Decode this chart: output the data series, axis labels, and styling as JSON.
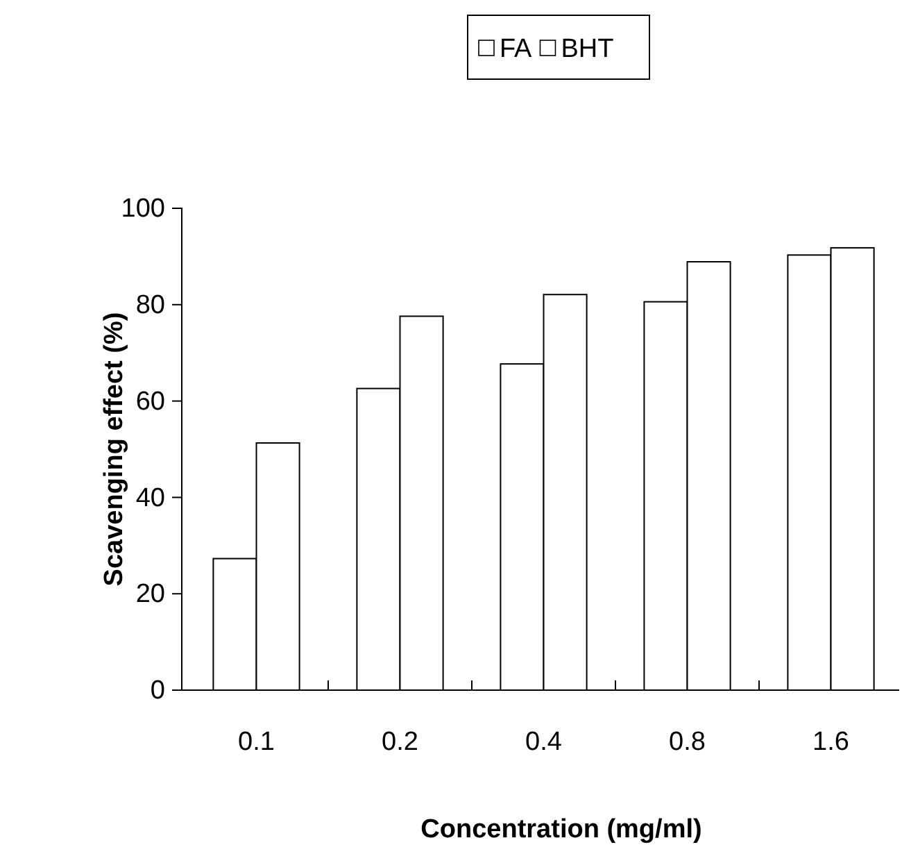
{
  "chart_data": {
    "type": "bar",
    "xlabel": "Concentration (mg/ml)",
    "ylabel": "Scavenging effect (%)",
    "categories": [
      "0.1",
      "0.2",
      "0.4",
      "0.8",
      "1.6"
    ],
    "series": [
      {
        "name": "FA",
        "color": "#ffffff",
        "values": [
          27.3,
          62.6,
          67.7,
          80.6,
          90.3
        ]
      },
      {
        "name": "BHT",
        "color": "#ffffff",
        "values": [
          51.3,
          77.6,
          82.1,
          88.9,
          91.8
        ]
      }
    ],
    "ylim": [
      0,
      100
    ],
    "yticks": [
      0,
      20,
      40,
      60,
      80,
      100
    ],
    "grid": false,
    "legend": "top"
  }
}
